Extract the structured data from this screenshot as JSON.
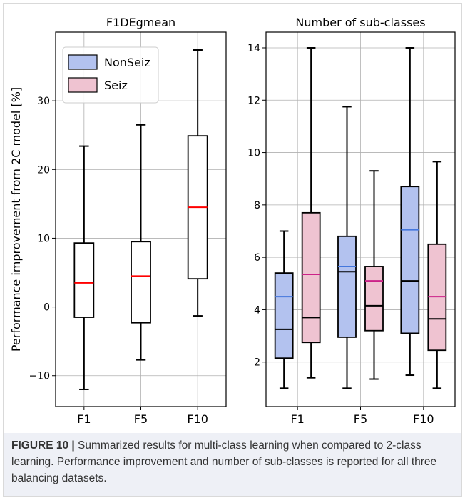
{
  "figure": {
    "caption_label": "FIGURE 10 |",
    "caption_text": " Summarized results for multi-class learning when compared to 2-class learning. Performance improvement and number of sub-classes is reported for all three balancing datasets."
  },
  "chart_data": [
    {
      "type": "box",
      "title": "F1DEgmean",
      "ylabel": "Performance improvement from 2C model [%]",
      "xlabel": "",
      "categories": [
        "F1",
        "F5",
        "F10"
      ],
      "ylim": [
        -14.5,
        40
      ],
      "yticks": [
        -10,
        0,
        10,
        20,
        30
      ],
      "ytick_labels": [
        "−10",
        "0",
        "10",
        "20",
        "30"
      ],
      "grid": true,
      "median_color": "#ff0000",
      "box_fill": "#ffffff",
      "boxes": [
        {
          "category": "F1",
          "whislo": -12,
          "q1": -1.5,
          "med": 3.5,
          "q3": 9.3,
          "whishi": 23.4
        },
        {
          "category": "F5",
          "whislo": -7.7,
          "q1": -2.3,
          "med": 4.5,
          "q3": 9.5,
          "whishi": 26.5
        },
        {
          "category": "F10",
          "whislo": -1.3,
          "q1": 4.1,
          "med": 14.5,
          "q3": 24.9,
          "whishi": 37.4
        }
      ]
    },
    {
      "type": "box",
      "title": "Number of sub-classes",
      "ylabel": "",
      "xlabel": "",
      "categories": [
        "F1",
        "F5",
        "F10"
      ],
      "ylim": [
        0.3,
        14.6
      ],
      "yticks": [
        2,
        4,
        6,
        8,
        10,
        12,
        14
      ],
      "ytick_labels": [
        "2",
        "4",
        "6",
        "8",
        "10",
        "12",
        "14"
      ],
      "grid": true,
      "legend": {
        "position": "top-left",
        "entries": [
          {
            "label": "NonSeiz",
            "color": "#b3c2ef"
          },
          {
            "label": "Seiz",
            "color": "#efc3d1"
          }
        ]
      },
      "series": [
        {
          "name": "NonSeiz",
          "fill": "#b3c2ef",
          "mean_color": "#4477dd",
          "boxes": [
            {
              "category": "F1",
              "whislo": 1.0,
              "q1": 2.15,
              "med": 3.25,
              "mean": 4.5,
              "q3": 5.4,
              "whishi": 7.0
            },
            {
              "category": "F5",
              "whislo": 1.0,
              "q1": 2.95,
              "med": 5.45,
              "mean": 5.65,
              "q3": 6.8,
              "whishi": 11.75
            },
            {
              "category": "F10",
              "whislo": 1.5,
              "q1": 3.1,
              "med": 5.1,
              "mean": 7.05,
              "q3": 8.7,
              "whishi": 14.0
            }
          ]
        },
        {
          "name": "Seiz",
          "fill": "#efc3d1",
          "mean_color": "#cc2288",
          "boxes": [
            {
              "category": "F1",
              "whislo": 1.4,
              "q1": 2.75,
              "med": 3.7,
              "mean": 5.35,
              "q3": 7.7,
              "whishi": 14.0
            },
            {
              "category": "F5",
              "whislo": 1.35,
              "q1": 3.2,
              "med": 4.15,
              "mean": 5.1,
              "q3": 5.65,
              "whishi": 9.3
            },
            {
              "category": "F10",
              "whislo": 1.0,
              "q1": 2.45,
              "med": 3.65,
              "mean": 4.5,
              "q3": 6.5,
              "whishi": 9.65
            }
          ]
        }
      ]
    }
  ]
}
